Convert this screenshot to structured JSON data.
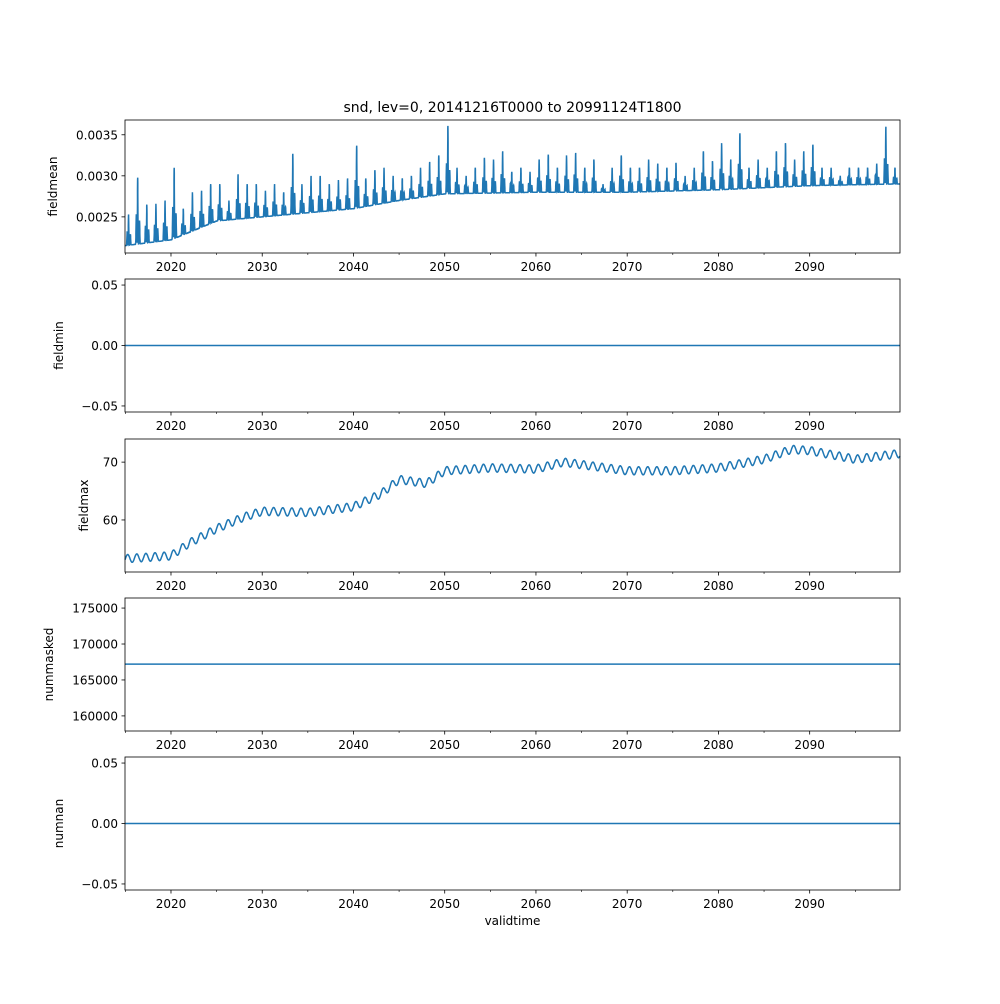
{
  "chart_data": [
    {
      "type": "line",
      "title": "snd, lev=0, 20141216T0000 to 20991124T1800",
      "ylabel": "fieldmean",
      "xlabel": "",
      "xlim": [
        2014.96,
        2099.9
      ],
      "ylim": [
        0.00206,
        0.00368
      ],
      "yticks": [
        0.0025,
        0.003,
        0.0035
      ],
      "ytick_labels": [
        "0.0025",
        "0.0030",
        "0.0035"
      ],
      "baseline_years": [
        2015,
        2020,
        2025,
        2030,
        2035,
        2040,
        2045,
        2050,
        2060,
        2070,
        2080,
        2090,
        2099
      ],
      "baseline_values": [
        0.00215,
        0.00222,
        0.00245,
        0.0025,
        0.00255,
        0.0026,
        0.0027,
        0.00278,
        0.0028,
        0.0028,
        0.00283,
        0.00288,
        0.0029
      ],
      "annual_peak_years_start": 2015,
      "annual_peaks": [
        0.00253,
        0.00298,
        0.00265,
        0.00266,
        0.0027,
        0.0031,
        0.0026,
        0.0028,
        0.00282,
        0.0029,
        0.0029,
        0.0027,
        0.00302,
        0.0029,
        0.0029,
        0.00282,
        0.0029,
        0.0028,
        0.00327,
        0.0029,
        0.003,
        0.003,
        0.0029,
        0.00295,
        0.00297,
        0.00337,
        0.00297,
        0.00307,
        0.0031,
        0.003,
        0.00297,
        0.003,
        0.0031,
        0.00317,
        0.00325,
        0.00361,
        0.0031,
        0.003,
        0.0031,
        0.00322,
        0.0032,
        0.0033,
        0.00305,
        0.0031,
        0.00305,
        0.0032,
        0.00326,
        0.0031,
        0.00325,
        0.00328,
        0.0031,
        0.0032,
        0.0029,
        0.0031,
        0.00325,
        0.0031,
        0.0031,
        0.0032,
        0.00315,
        0.0031,
        0.00316,
        0.003,
        0.0031,
        0.0033,
        0.00318,
        0.0034,
        0.0032,
        0.00352,
        0.0031,
        0.0032,
        0.0031,
        0.0033,
        0.0034,
        0.0032,
        0.0033,
        0.00338,
        0.0031,
        0.0031,
        0.003,
        0.0031,
        0.0031,
        0.0031,
        0.00315,
        0.0036,
        0.0031
      ]
    },
    {
      "type": "line",
      "ylabel": "fieldmin",
      "ylim": [
        -0.055,
        0.055
      ],
      "yticks": [
        -0.05,
        0.0,
        0.05
      ],
      "ytick_labels": [
        "−0.05",
        "0.00",
        "0.05"
      ],
      "constant_value": 0.0
    },
    {
      "type": "line",
      "ylabel": "fieldmax",
      "ylim": [
        51.0,
        74.0
      ],
      "yticks": [
        60,
        70
      ],
      "ytick_labels": [
        "60",
        "70"
      ],
      "trend_years": [
        2015,
        2020,
        2022,
        2025,
        2028,
        2030,
        2035,
        2040,
        2043,
        2045,
        2048,
        2050,
        2055,
        2060,
        2063,
        2070,
        2075,
        2080,
        2085,
        2088,
        2090,
        2095,
        2099.9
      ],
      "trend_values": [
        53.3,
        53.8,
        56.0,
        58.5,
        60.5,
        61.5,
        61.3,
        62.3,
        64.5,
        67.0,
        66.3,
        68.5,
        69.0,
        68.8,
        70.0,
        68.5,
        68.5,
        69.0,
        70.5,
        72.2,
        72.0,
        70.5,
        71.5
      ],
      "seasonal_amplitude": 0.7
    },
    {
      "type": "line",
      "ylabel": "nummasked",
      "ylim": [
        157900,
        176400
      ],
      "yticks": [
        160000,
        165000,
        170000,
        175000
      ],
      "ytick_labels": [
        "160000",
        "165000",
        "170000",
        "175000"
      ],
      "constant_value": 167200
    },
    {
      "type": "line",
      "ylabel": "numnan",
      "xlabel": "validtime",
      "ylim": [
        -0.055,
        0.055
      ],
      "yticks": [
        -0.05,
        0.0,
        0.05
      ],
      "ytick_labels": [
        "−0.05",
        "0.00",
        "0.05"
      ],
      "constant_value": 0.0
    }
  ],
  "xaxis": {
    "ticks": [
      2020,
      2030,
      2040,
      2050,
      2060,
      2070,
      2080,
      2090
    ],
    "tick_labels": [
      "2020",
      "2030",
      "2040",
      "2050",
      "2060",
      "2070",
      "2080",
      "2090"
    ],
    "minor_ticks": [
      2015,
      2025,
      2035,
      2045,
      2055,
      2065,
      2075,
      2085,
      2095
    ]
  },
  "colors": {
    "line": "#1f77b4",
    "axes": "#000000"
  }
}
